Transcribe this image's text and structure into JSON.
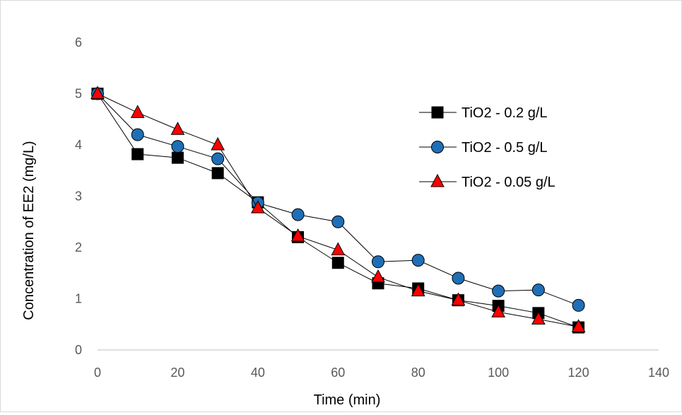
{
  "chart_data": {
    "type": "line",
    "title": "",
    "xlabel": "Time (min)",
    "ylabel": "Concentration of  EE2 (mg/L)",
    "xlim": [
      0,
      140
    ],
    "ylim": [
      0,
      6
    ],
    "xticks": [
      0,
      20,
      40,
      60,
      80,
      100,
      120,
      140
    ],
    "yticks": [
      0,
      1,
      2,
      3,
      4,
      5,
      6
    ],
    "grid": false,
    "legend_position": "right",
    "x": [
      0,
      10,
      20,
      30,
      40,
      50,
      60,
      70,
      80,
      90,
      100,
      110,
      120
    ],
    "series": [
      {
        "name": "TiO2 - 0.2 g/L",
        "marker": "square",
        "color": "#000000",
        "values": [
          5.0,
          3.82,
          3.75,
          3.45,
          2.88,
          2.2,
          1.7,
          1.3,
          1.2,
          0.97,
          0.86,
          0.72,
          0.44
        ]
      },
      {
        "name": "TiO2 - 0.5 g/L",
        "marker": "circle",
        "color": "#1f6fb6",
        "values": [
          5.0,
          4.2,
          3.97,
          3.73,
          2.87,
          2.64,
          2.5,
          1.72,
          1.75,
          1.4,
          1.15,
          1.17,
          0.87
        ]
      },
      {
        "name": "TiO2 - 0.05 g/L",
        "marker": "triangle",
        "color": "#ff0000",
        "values": [
          5.0,
          4.63,
          4.3,
          4.0,
          2.77,
          2.22,
          1.95,
          1.42,
          1.15,
          0.97,
          0.74,
          0.6,
          0.45
        ]
      }
    ]
  }
}
